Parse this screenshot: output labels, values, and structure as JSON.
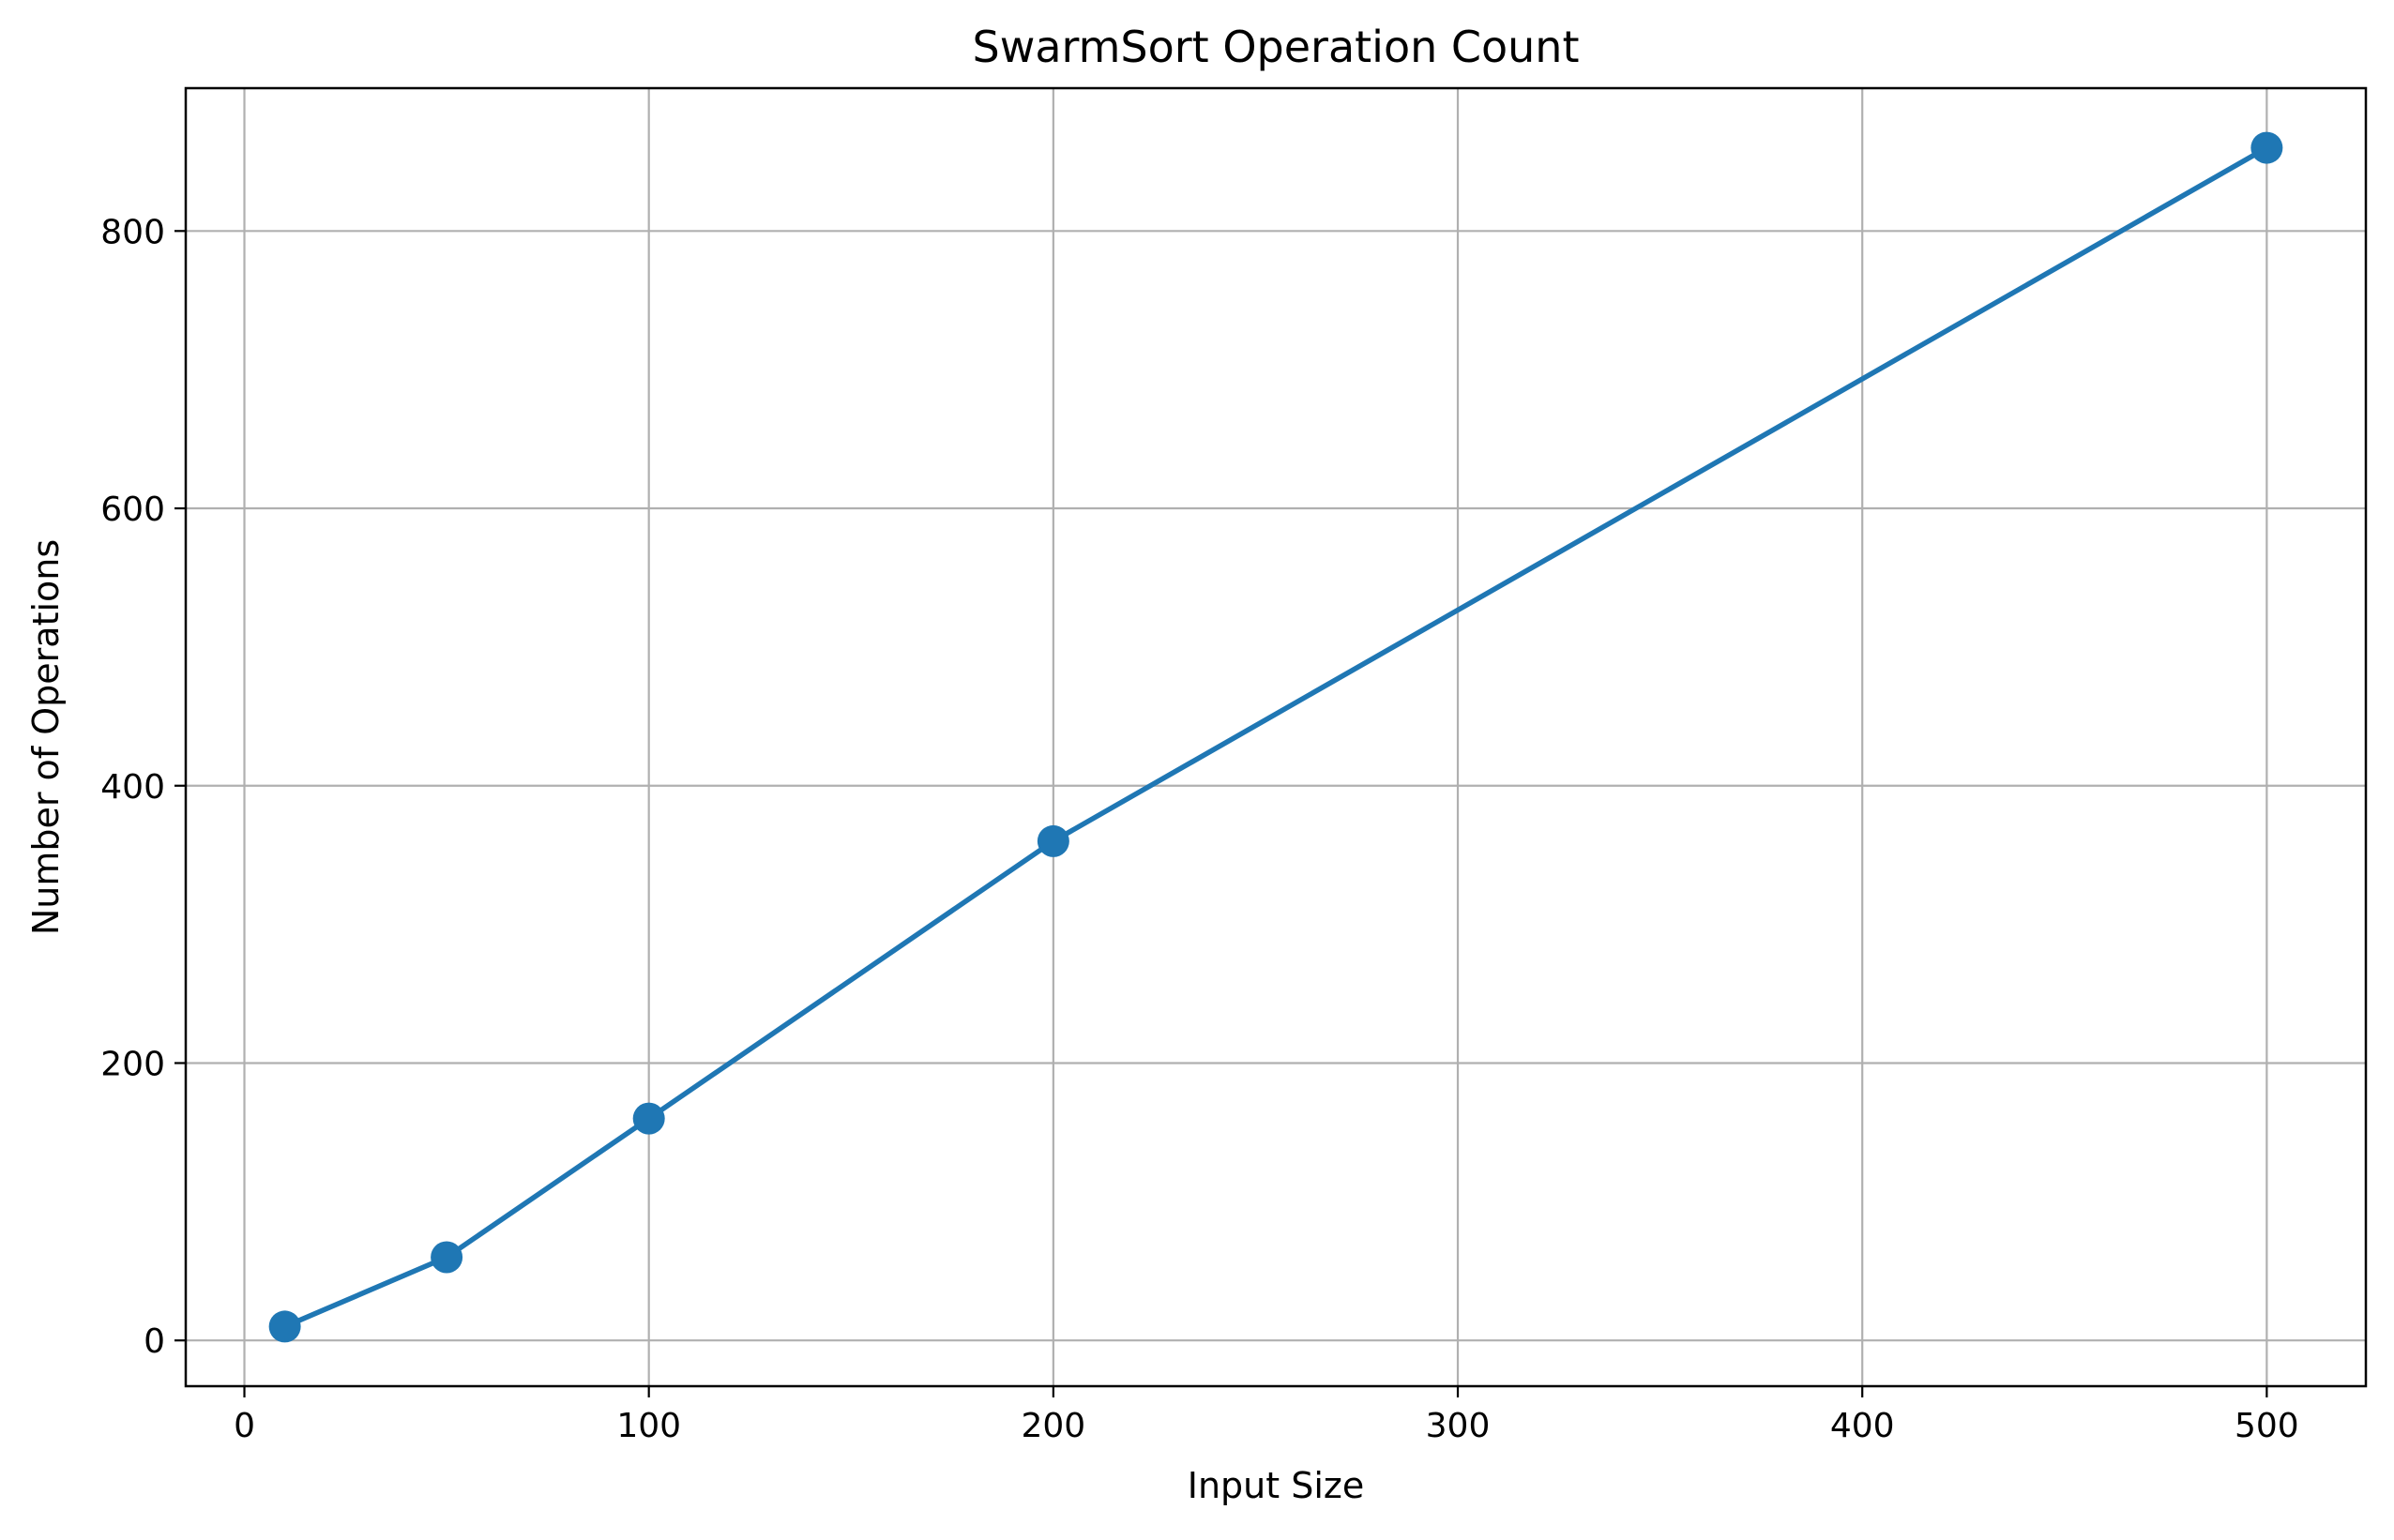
{
  "chart_data": {
    "type": "line",
    "title": "SwarmSort Operation Count",
    "xlabel": "Input Size",
    "ylabel": "Number of Operations",
    "xlim": [
      -14.5,
      524.5
    ],
    "ylim": [
      -33,
      903
    ],
    "grid": true,
    "x_ticks": [
      0,
      100,
      200,
      300,
      400,
      500
    ],
    "y_ticks": [
      0,
      200,
      400,
      600,
      800
    ],
    "x_tick_labels": [
      "0",
      "100",
      "200",
      "300",
      "400",
      "500"
    ],
    "y_tick_labels": [
      "0",
      "200",
      "400",
      "600",
      "800"
    ],
    "series": [
      {
        "x": [
          10,
          50,
          100,
          200,
          500
        ],
        "values": [
          10,
          60,
          160,
          360,
          860
        ],
        "color": "#1f77b4",
        "marker": "circle"
      }
    ]
  }
}
